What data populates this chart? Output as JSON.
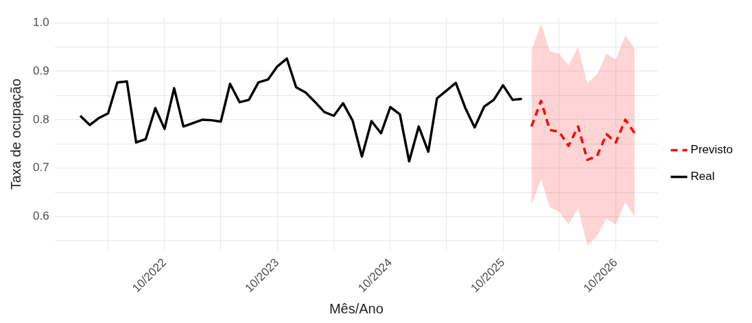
{
  "chart_data": {
    "type": "line",
    "xlabel": "Mês/Ano",
    "ylabel": "Taxa de ocupação",
    "xlim": [
      "2021-10-10",
      "2027-02-15"
    ],
    "xticks": [
      {
        "value": "2022-04",
        "label": null
      },
      {
        "value": "2022-10",
        "label": "10/2022"
      },
      {
        "value": "2023-04",
        "label": null
      },
      {
        "value": "2023-10",
        "label": "10/2023"
      },
      {
        "value": "2024-04",
        "label": null
      },
      {
        "value": "2024-10",
        "label": "10/2024"
      },
      {
        "value": "2025-04",
        "label": null
      },
      {
        "value": "2025-10",
        "label": "10/2025"
      },
      {
        "value": "2026-04",
        "label": null
      },
      {
        "value": "2026-10",
        "label": "10/2026"
      }
    ],
    "ylim": [
      0.53,
      1.01
    ],
    "yticks": [
      {
        "value": 0.55,
        "label": null
      },
      0.6,
      {
        "value": 0.65,
        "label": null
      },
      0.7,
      {
        "value": 0.75,
        "label": null
      },
      0.8,
      {
        "value": 0.85,
        "label": null
      },
      0.9,
      {
        "value": 0.95,
        "label": null
      },
      {
        "value": 1.0,
        "label": "1.0"
      }
    ],
    "grid": true,
    "legend": "right",
    "marker": "none",
    "series": [
      {
        "name": "Previsto",
        "color": "#ff0000",
        "line_style": "dashed",
        "x": [
          "2026-01",
          "2026-02",
          "2026-03",
          "2026-04",
          "2026-05",
          "2026-06",
          "2026-07",
          "2026-08",
          "2026-09",
          "2026-10",
          "2026-11",
          "2026-12"
        ],
        "values": [
          0.786,
          0.839,
          0.779,
          0.775,
          0.746,
          0.786,
          0.717,
          0.725,
          0.77,
          0.753,
          0.8,
          0.772
        ],
        "lower": [
          0.624,
          0.677,
          0.62,
          0.61,
          0.584,
          0.617,
          0.541,
          0.56,
          0.596,
          0.584,
          0.629,
          0.6
        ],
        "upper": [
          0.943,
          0.998,
          0.941,
          0.936,
          0.912,
          0.95,
          0.875,
          0.893,
          0.936,
          0.924,
          0.974,
          0.946
        ]
      },
      {
        "name": "Real",
        "color": "#000000",
        "line_style": "solid",
        "x": [
          "2022-01",
          "2022-02",
          "2022-03",
          "2022-04",
          "2022-05",
          "2022-06",
          "2022-07",
          "2022-08",
          "2022-09",
          "2022-10",
          "2022-11",
          "2022-12",
          "2023-01",
          "2023-02",
          "2023-03",
          "2023-04",
          "2023-05",
          "2023-06",
          "2023-07",
          "2023-08",
          "2023-09",
          "2023-10",
          "2023-11",
          "2023-12",
          "2024-01",
          "2024-02",
          "2024-03",
          "2024-04",
          "2024-05",
          "2024-06",
          "2024-07",
          "2024-08",
          "2024-09",
          "2024-10",
          "2024-11",
          "2024-12",
          "2025-01",
          "2025-02",
          "2025-03",
          "2025-04",
          "2025-05",
          "2025-06",
          "2025-07",
          "2025-08",
          "2025-09",
          "2025-10",
          "2025-11",
          "2025-12"
        ],
        "values": [
          0.808,
          0.789,
          0.803,
          0.813,
          0.877,
          0.879,
          0.753,
          0.76,
          0.824,
          0.781,
          0.865,
          0.786,
          0.793,
          0.8,
          0.799,
          0.796,
          0.874,
          0.836,
          0.841,
          0.877,
          0.883,
          0.91,
          0.926,
          0.867,
          0.856,
          0.836,
          0.816,
          0.808,
          0.834,
          0.798,
          0.724,
          0.797,
          0.772,
          0.826,
          0.811,
          0.714,
          0.786,
          0.734,
          0.844,
          0.86,
          0.876,
          0.824,
          0.784,
          0.827,
          0.841,
          0.871,
          0.841,
          0.843
        ]
      }
    ]
  }
}
